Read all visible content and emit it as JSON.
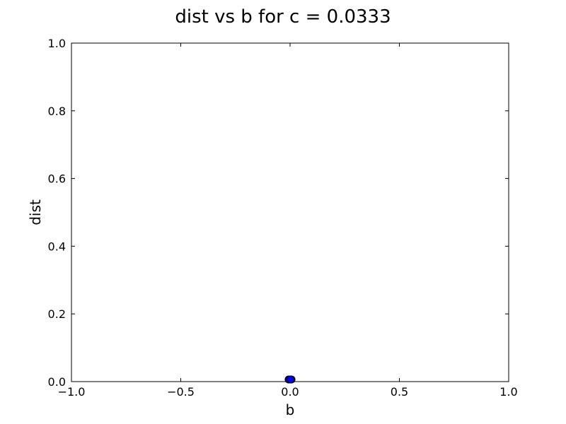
{
  "chart_data": {
    "type": "scatter",
    "title": "dist vs b for c = 0.0333",
    "xlabel": "b",
    "ylabel": "dist",
    "xlim": [
      -1.0,
      1.0
    ],
    "ylim": [
      0.0,
      1.0
    ],
    "x_ticks": [
      -1.0,
      -0.5,
      0.0,
      0.5,
      1.0
    ],
    "x_tick_labels": [
      "−1.0",
      "−0.5",
      "0.0",
      "0.5",
      "1.0"
    ],
    "y_ticks": [
      0.0,
      0.2,
      0.4,
      0.6,
      0.8,
      1.0
    ],
    "y_tick_labels": [
      "0.0",
      "0.2",
      "0.4",
      "0.6",
      "0.8",
      "1.0"
    ],
    "grid": false,
    "legend": "none",
    "series": [
      {
        "color": "#0000ff",
        "edge_color": "#000000",
        "points": [
          {
            "x": -0.0067,
            "y": 0.0
          },
          {
            "x": 0.0,
            "y": 0.0
          },
          {
            "x": 0.0067,
            "y": 0.0
          },
          {
            "x": -0.0033,
            "y": 0.0
          },
          {
            "x": 0.0033,
            "y": 0.0
          }
        ]
      }
    ]
  }
}
